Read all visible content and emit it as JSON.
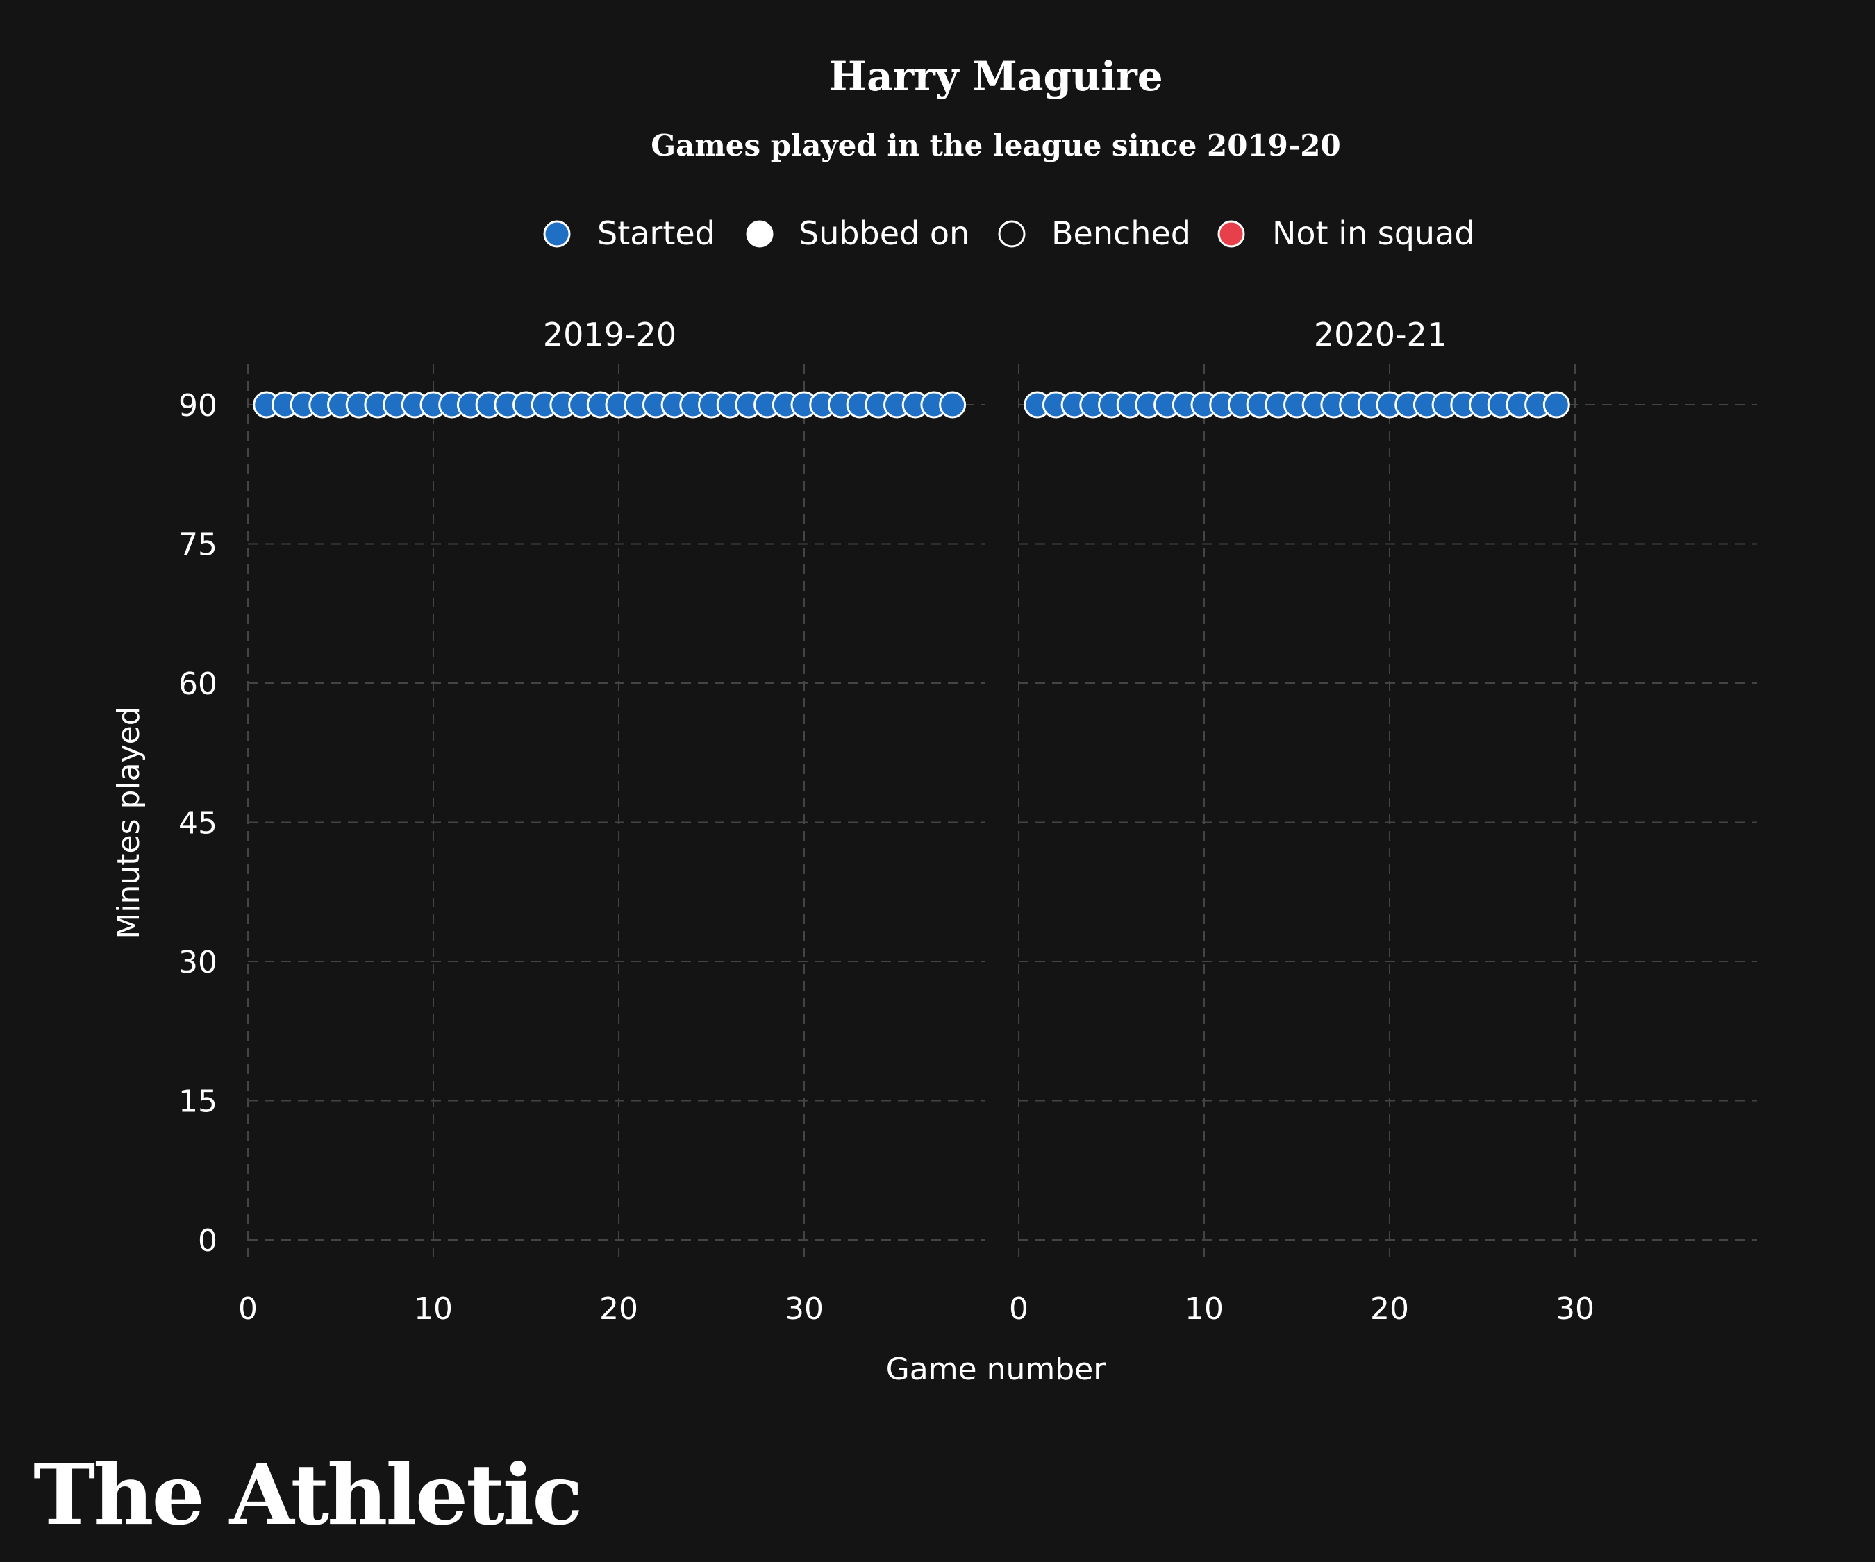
{
  "chart_data": {
    "type": "scatter",
    "title": "Harry Maguire",
    "subtitle": "Games played in the league since 2019-20",
    "xlabel": "Game number",
    "ylabel": "Minutes played",
    "y_ticks": [
      0,
      15,
      30,
      45,
      60,
      75,
      90
    ],
    "x_ticks": [
      0,
      10,
      20,
      30
    ],
    "grid": true,
    "legend": [
      {
        "label": "Started",
        "color": "#1f6fc5",
        "stroke": "#ffffff"
      },
      {
        "label": "Subbed on",
        "color": "#ffffff",
        "stroke": "#ffffff"
      },
      {
        "label": "Benched",
        "color": "#141414",
        "stroke": "#ffffff"
      },
      {
        "label": "Not in squad",
        "color": "#e8404a",
        "stroke": "#ffffff"
      }
    ],
    "legend_position": "top",
    "panels": [
      {
        "label": "2019-20",
        "games": 38,
        "status": "Started",
        "minutes": 90
      },
      {
        "label": "2020-21",
        "games": 29,
        "status": "Started",
        "minutes": 90
      }
    ]
  },
  "brand": "The Athletic"
}
